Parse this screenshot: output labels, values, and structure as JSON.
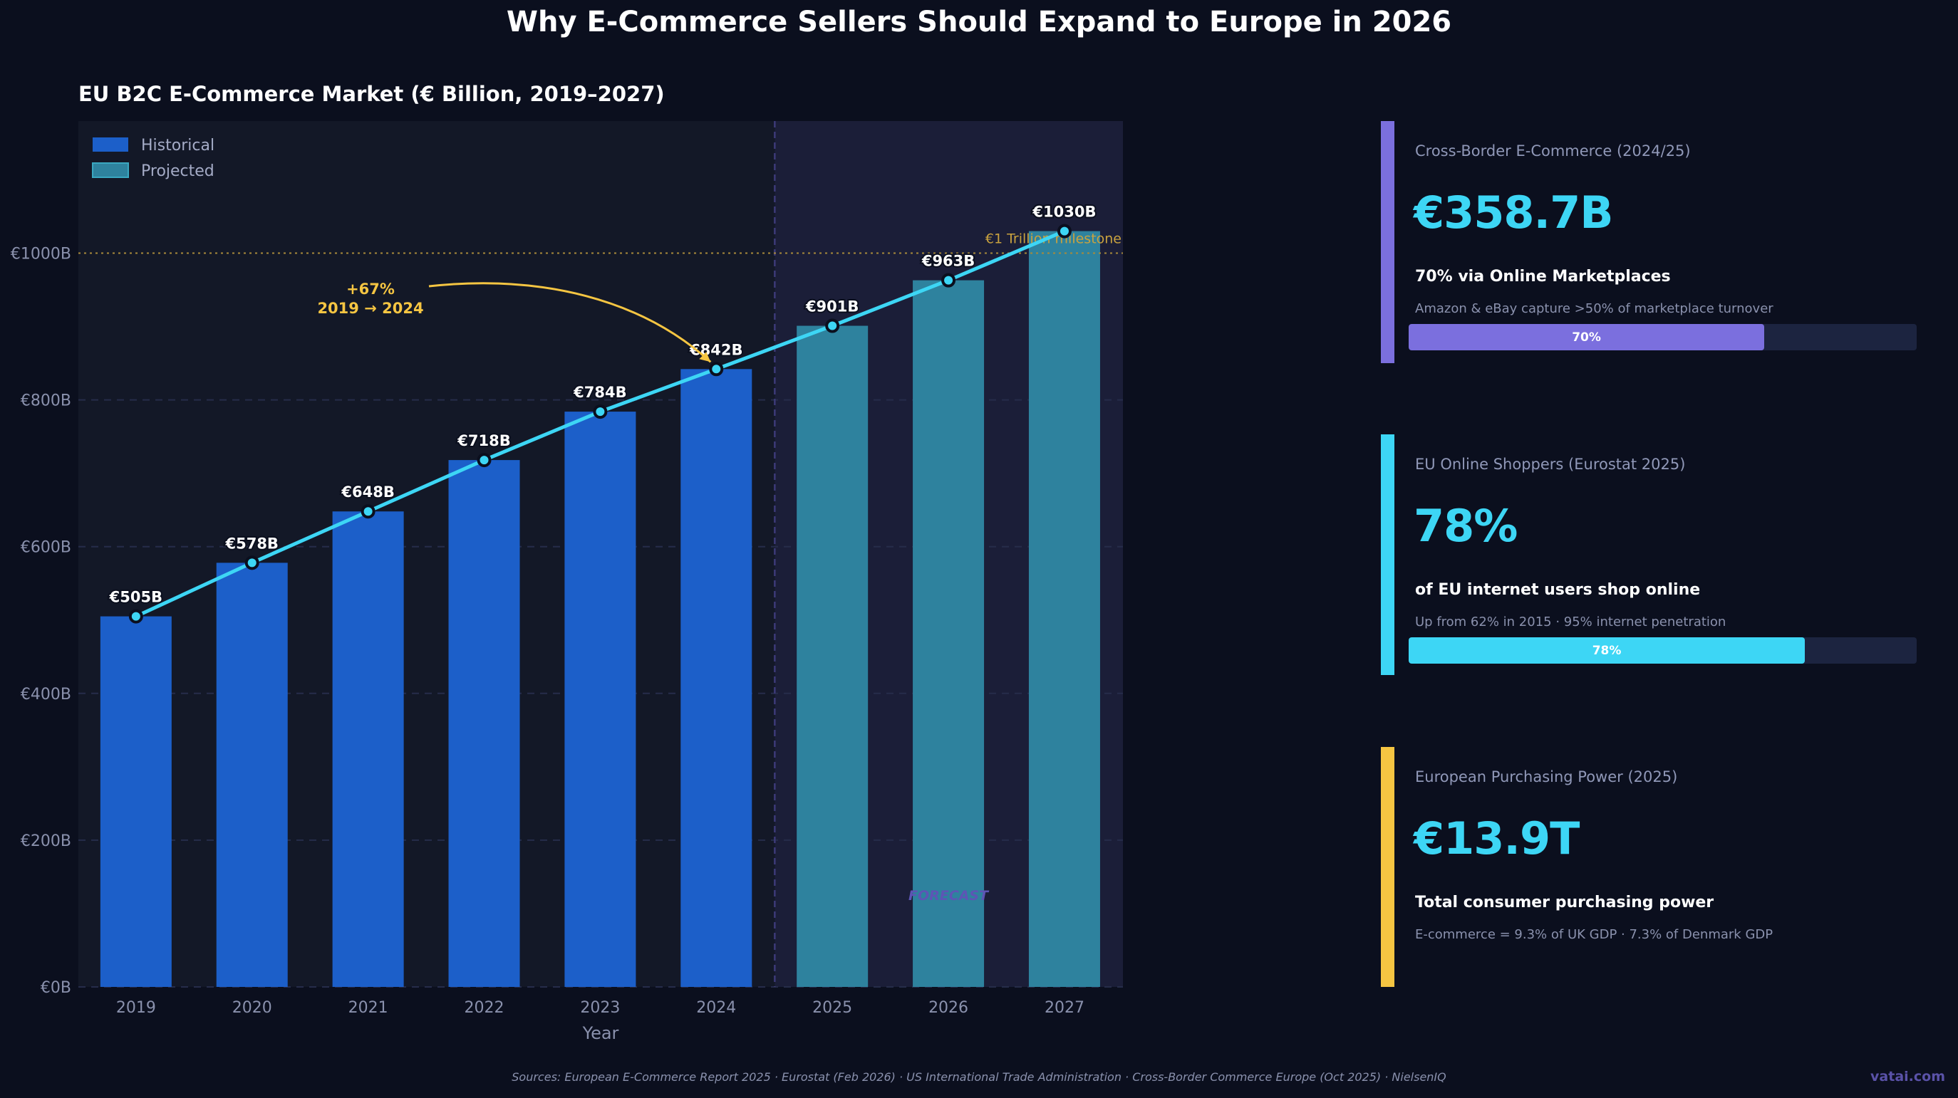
{
  "title": "Why E-Commerce Sellers Should Expand to Europe in 2026",
  "chart_data": {
    "type": "bar",
    "title": "EU B2C E-Commerce Market  (€ Billion, 2019–2027)",
    "xlabel": "Year",
    "ylabel": "",
    "categories": [
      "2019",
      "2020",
      "2021",
      "2022",
      "2023",
      "2024",
      "2025",
      "2026",
      "2027"
    ],
    "values": [
      505,
      578,
      648,
      718,
      784,
      842,
      901,
      963,
      1030
    ],
    "value_labels": [
      "€505B",
      "€578B",
      "€648B",
      "€718B",
      "€784B",
      "€842B",
      "€901B",
      "€963B",
      "€1030B"
    ],
    "series_type": [
      "Historical",
      "Historical",
      "Historical",
      "Historical",
      "Historical",
      "Historical",
      "Projected",
      "Projected",
      "Projected"
    ],
    "overlay_line": true,
    "ylim": [
      0,
      1180
    ],
    "yticks": [
      0,
      200,
      400,
      600,
      800,
      1000
    ],
    "ytick_labels": [
      "€0B",
      "€200B",
      "€400B",
      "€600B",
      "€800B",
      "€1000B"
    ],
    "grid": true,
    "legend": {
      "placement": "top-left",
      "entries": [
        {
          "name": "Historical",
          "color": "#1c5fc9"
        },
        {
          "name": "Projected",
          "color": "#2e829e"
        }
      ]
    },
    "reference_line": {
      "value": 1000,
      "label": "€1 Trillion milestone",
      "color": "#d4a93a"
    },
    "annotation": {
      "line1": "+67%",
      "line2": "2019 → 2024",
      "target": "2024",
      "color": "#f5c542"
    },
    "forecast_label": "FORECAST",
    "forecast_start": "2025",
    "colors": {
      "historical": "#1c5fc9",
      "projected": "#2e829e",
      "line": "#3dd6f5",
      "forecast_bg": "#1b1e38",
      "plot_bg": "#131827"
    }
  },
  "cards": [
    {
      "label": "Cross-Border E-Commerce  (2024/25)",
      "value": "€358.7B",
      "subtitle": "70% via Online Marketplaces",
      "note": "Amazon & eBay capture >50% of marketplace turnover",
      "progress": 70,
      "progress_label": "70%",
      "color": "#7b6fde"
    },
    {
      "label": "EU Online Shoppers  (Eurostat 2025)",
      "value": "78%",
      "subtitle": "of EU internet users shop online",
      "note": "Up from 62% in 2015  ·  95% internet penetration",
      "progress": 78,
      "progress_label": "78%",
      "color": "#3dd6f5"
    },
    {
      "label": "European Purchasing Power  (2025)",
      "value": "€13.9T",
      "subtitle": "Total consumer purchasing power",
      "note": "E-commerce = 9.3% of UK GDP · 7.3% of Denmark GDP",
      "color": "#f5c542"
    }
  ],
  "footer": {
    "sources": "Sources: European E-Commerce Report 2025  ·  Eurostat (Feb 2026)  ·  US International Trade Administration  ·  Cross-Border Commerce Europe (Oct 2025)  ·  NielsenIQ",
    "brand": "vatai.com"
  }
}
